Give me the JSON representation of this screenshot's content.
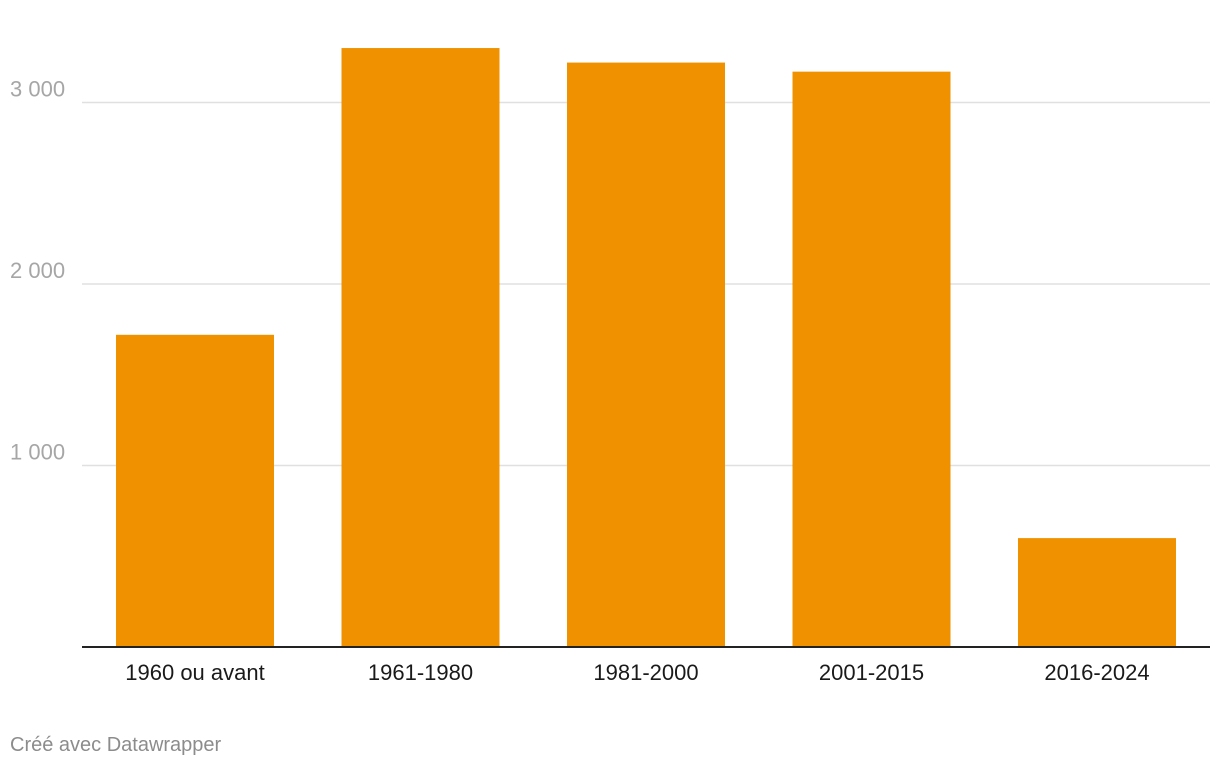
{
  "chart_data": {
    "type": "bar",
    "categories": [
      "1960 ou avant",
      "1961-1980",
      "1981-2000",
      "2001-2015",
      "2016-2024"
    ],
    "values": [
      1720,
      3300,
      3220,
      3170,
      600
    ],
    "title": "",
    "xlabel": "",
    "ylabel": "",
    "ylim": [
      0,
      3300
    ],
    "yticks": [
      1000,
      2000,
      3000
    ],
    "ytick_labels": [
      "1 000",
      "2 000",
      "3 000"
    ],
    "grid": true,
    "legend": "none",
    "colors": {
      "bar": "#f09100",
      "grid": "#e0e0e0",
      "axis": "#222222"
    }
  },
  "footer": {
    "credit": "Créé avec Datawrapper"
  }
}
